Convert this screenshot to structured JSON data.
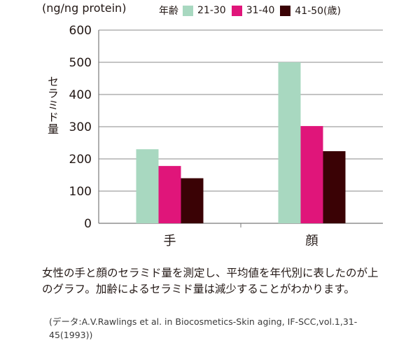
{
  "chart_data": {
    "type": "bar",
    "unit_label": "(ng/ng protein)",
    "ylabel": "セラミド量",
    "legend_title": "年齢",
    "categories": [
      "手",
      "顔"
    ],
    "series": [
      {
        "name": "21-30",
        "color": "#a8d8c0",
        "values": [
          230,
          500
        ]
      },
      {
        "name": "31-40",
        "color": "#e0157a",
        "values": [
          178,
          302
        ]
      },
      {
        "name": "41-50(歳)",
        "color": "#3a0205",
        "values": [
          140,
          224
        ]
      }
    ],
    "ylim": [
      0,
      600
    ],
    "yticks": [
      0,
      100,
      200,
      300,
      400,
      500,
      600
    ],
    "grid": true,
    "legend_position": "top-right"
  },
  "caption": "女性の手と顔のセラミド量を測定し、平均値を年代別に表したのが上のグラフ。加齢によるセラミド量は減少することがわかります。",
  "source": "(データ:A.V.Rawlings et al. in Biocosmetics-Skin aging, IF-SCC,vol.1,31-45(1993))"
}
